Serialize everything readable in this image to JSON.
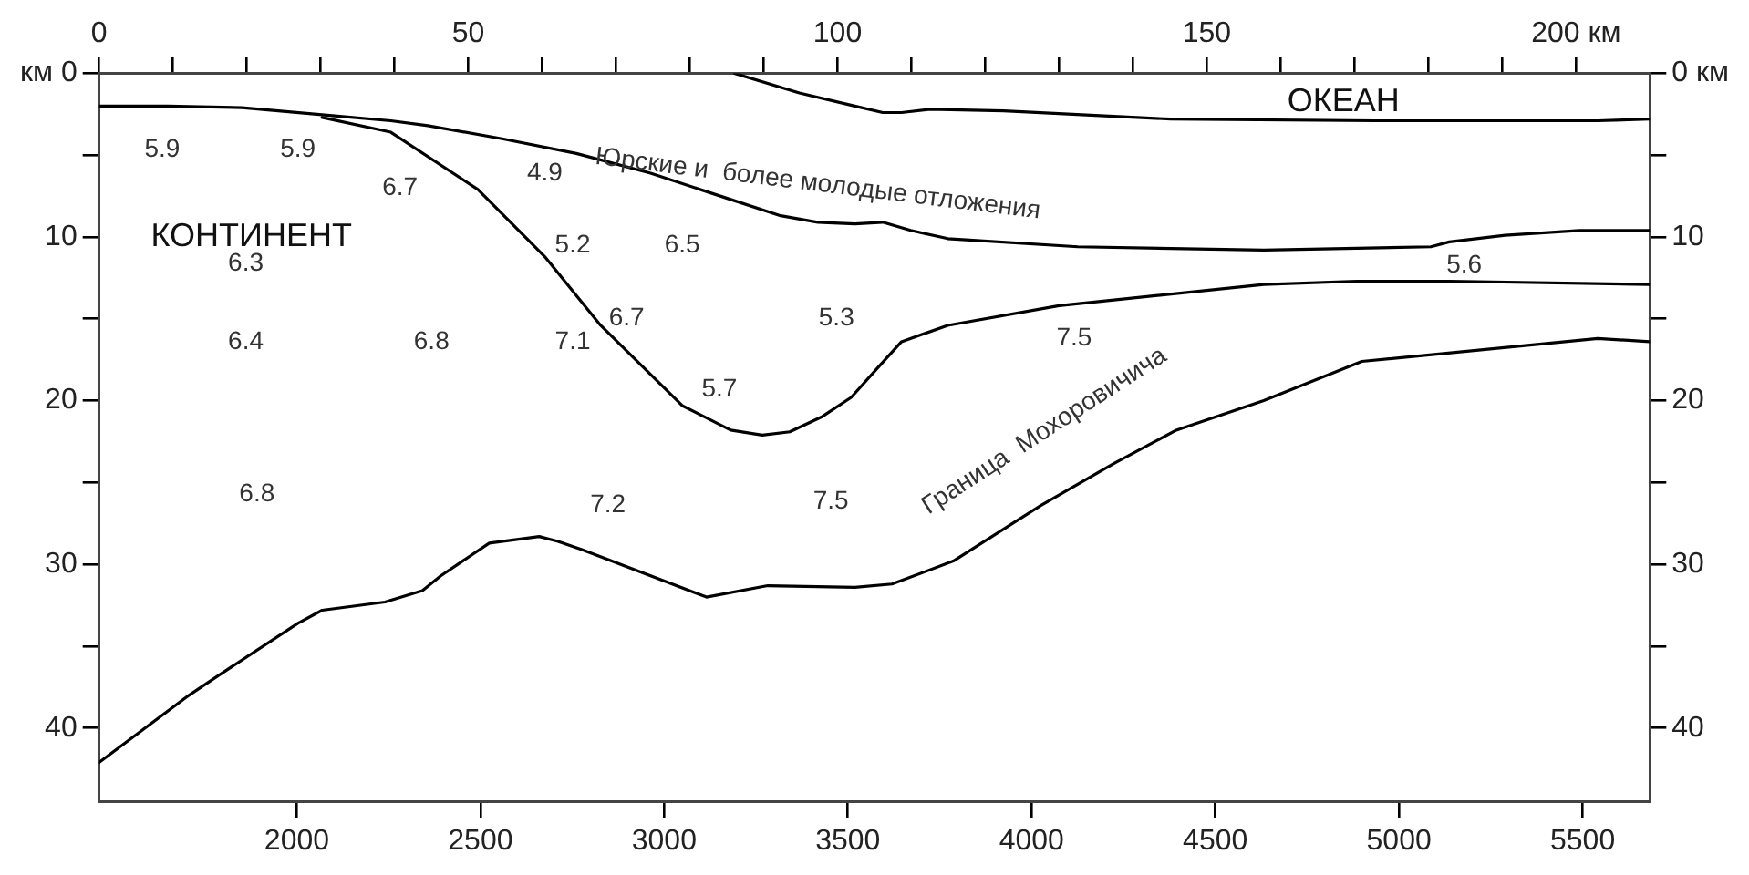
{
  "chart_data": {
    "type": "line",
    "marker": "none",
    "line_style": "solid",
    "xlim": [
      1462,
      5683
    ],
    "xticks": [
      2000,
      2500,
      3000,
      3500,
      4000,
      4500,
      5000,
      5500
    ],
    "x2lim": [
      0,
      210
    ],
    "x2ticks": [
      0,
      {
        "value": 10,
        "label": null
      },
      {
        "value": 20,
        "label": null
      },
      {
        "value": 30,
        "label": null
      },
      {
        "value": 40,
        "label": null
      },
      50,
      {
        "value": 60,
        "label": null
      },
      {
        "value": 70,
        "label": null
      },
      {
        "value": 80,
        "label": null
      },
      {
        "value": 90,
        "label": null
      },
      100,
      {
        "value": 110,
        "label": null
      },
      {
        "value": 120,
        "label": null
      },
      {
        "value": 130,
        "label": null
      },
      {
        "value": 140,
        "label": null
      },
      150,
      {
        "value": 160,
        "label": null
      },
      {
        "value": 170,
        "label": null
      },
      {
        "value": 180,
        "label": null
      },
      {
        "value": 190,
        "label": null
      },
      {
        "value": 200,
        "label": "200 км"
      }
    ],
    "ylim": [
      44.5,
      0
    ],
    "yticks": [
      {
        "value": 0,
        "label": "км 0"
      },
      {
        "value": 5,
        "label": null
      },
      10,
      {
        "value": 15,
        "label": null
      },
      20,
      {
        "value": 25,
        "label": null
      },
      30,
      {
        "value": 35,
        "label": null
      },
      40
    ],
    "y2lim": [
      44.5,
      0
    ],
    "y2ticks": [
      {
        "value": 0,
        "label": "0 км"
      },
      {
        "value": 5,
        "label": null
      },
      10,
      {
        "value": 15,
        "label": null
      },
      20,
      {
        "value": 25,
        "label": null
      },
      30,
      {
        "value": 35,
        "label": null
      },
      40
    ],
    "series": [
      {
        "color": "#000000",
        "x": [
          3191,
          3368,
          3519,
          3595,
          3646,
          3722,
          3924,
          4379,
          4935,
          5541,
          5683
        ],
        "values": [
          0,
          1.2,
          2.0,
          2.4,
          2.4,
          2.2,
          2.3,
          2.8,
          2.9,
          2.9,
          2.8
        ]
      },
      {
        "color": "#000000",
        "x": [
          1462,
          1649,
          1851,
          2104,
          2256,
          2357,
          2559,
          2761,
          2963,
          3166,
          3317,
          3418,
          3519,
          3595,
          3671,
          3772,
          4126,
          4632,
          5087,
          5137,
          5289,
          5491,
          5683
        ],
        "values": [
          2.0,
          2.0,
          2.1,
          2.6,
          2.9,
          3.2,
          4.0,
          4.9,
          6.1,
          7.6,
          8.7,
          9.1,
          9.2,
          9.1,
          9.6,
          10.1,
          10.6,
          10.8,
          10.6,
          10.3,
          9.9,
          9.6,
          9.6
        ]
      },
      {
        "color": "#000000",
        "x": [
          2069,
          2256,
          2493,
          2675,
          2827,
          3049,
          3181,
          3267,
          3342,
          3428,
          3509,
          3585,
          3646,
          3696,
          3772,
          4075,
          4632,
          4885,
          5137,
          5683
        ],
        "values": [
          2.7,
          3.6,
          7.1,
          11.2,
          15.4,
          20.3,
          21.8,
          22.1,
          21.9,
          21.0,
          19.8,
          17.9,
          16.4,
          16.0,
          15.4,
          14.2,
          12.9,
          12.7,
          12.7,
          12.9
        ]
      },
      {
        "color": "#000000",
        "x": [
          1462,
          1700,
          1786,
          2003,
          2069,
          2240,
          2342,
          2392,
          2524,
          2660,
          2711,
          2776,
          3115,
          3282,
          3519,
          3620,
          3787,
          4025,
          4227,
          4394,
          4632,
          4899,
          5541,
          5683
        ],
        "values": [
          42.1,
          38.1,
          36.8,
          33.6,
          32.8,
          32.3,
          31.6,
          30.7,
          28.7,
          28.3,
          28.6,
          29.1,
          32.0,
          31.3,
          31.4,
          31.2,
          29.8,
          26.4,
          23.8,
          21.8,
          20.0,
          17.6,
          16.2,
          16.4
        ]
      }
    ],
    "annotations": [
      "5.9",
      "5.9",
      "6.7",
      "4.9",
      "КОНТИНЕНТ",
      "6.3",
      "5.2",
      "6.5",
      "6.7",
      "5.3",
      "6.4",
      "6.8",
      "7.1",
      "5.7",
      "7.5",
      "5.6",
      "ОКЕАН",
      "6.8",
      "7.2",
      "7.5",
      "Юрские и  более молодые отложения",
      "Граница  Мохоровичича"
    ]
  }
}
